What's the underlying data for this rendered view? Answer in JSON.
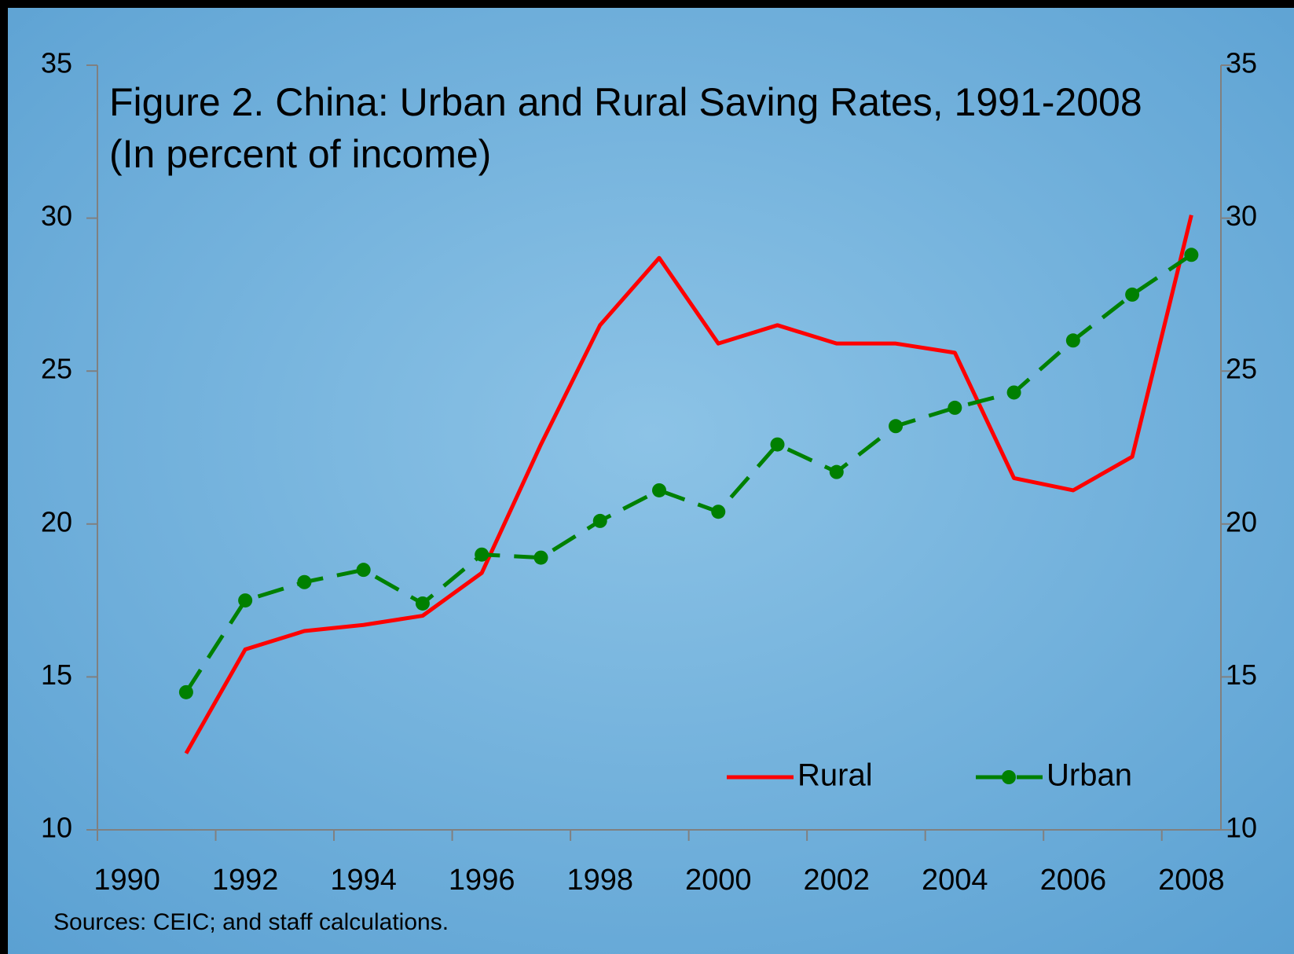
{
  "chart_data": {
    "type": "line",
    "title": "Figure 2. China: Urban and Rural Saving Rates, 1991-2008",
    "subtitle": "(In percent of income)",
    "note": "Sources: CEIC; and staff calculations.",
    "categories": [
      "1990",
      null,
      "1992",
      null,
      "1994",
      null,
      "1996",
      null,
      "1998",
      null,
      "2000",
      null,
      "2002",
      null,
      "2004",
      null,
      "2006",
      null,
      "2008"
    ],
    "series": [
      {
        "name": "Rural",
        "color": "#ff0000",
        "dashed": false,
        "markers": false,
        "values": [
          null,
          12.5,
          15.9,
          16.5,
          16.7,
          17.0,
          18.4,
          22.6,
          26.5,
          28.7,
          25.9,
          26.5,
          25.9,
          25.9,
          25.6,
          21.5,
          21.1,
          22.2,
          30.1
        ]
      },
      {
        "name": "Urban",
        "color": "#008000",
        "dashed": true,
        "markers": true,
        "values": [
          null,
          14.5,
          17.5,
          18.1,
          18.5,
          17.4,
          19.0,
          18.9,
          20.1,
          21.1,
          20.4,
          22.6,
          21.7,
          23.2,
          23.8,
          24.3,
          26.0,
          27.5,
          28.8
        ]
      }
    ],
    "ylim": [
      10,
      35
    ],
    "yticks": [
      10,
      15,
      20,
      25,
      30,
      35
    ],
    "y2lim": [
      10,
      35
    ],
    "y2ticks": [
      10,
      15,
      20,
      25,
      30,
      35
    ],
    "legend": "lower right"
  }
}
